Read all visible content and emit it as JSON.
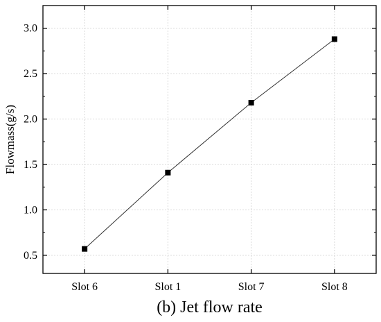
{
  "chart_data": {
    "type": "line",
    "title": "",
    "caption": "(b) Jet flow rate",
    "xlabel": "",
    "ylabel": "Flowmass(g/s)",
    "categories": [
      "Slot 6",
      "Slot 1",
      "Slot 7",
      "Slot 8"
    ],
    "series": [
      {
        "values": [
          0.57,
          1.41,
          2.18,
          2.88
        ]
      }
    ],
    "ylim": [
      0.3,
      3.25
    ],
    "yticks": [
      "0.5",
      "1.0",
      "1.5",
      "2.0",
      "2.5",
      "3.0"
    ],
    "grid": true,
    "marker": "square",
    "colors": {
      "line": "#333333",
      "marker": "#000000",
      "grid": "#d9d9d9"
    }
  }
}
